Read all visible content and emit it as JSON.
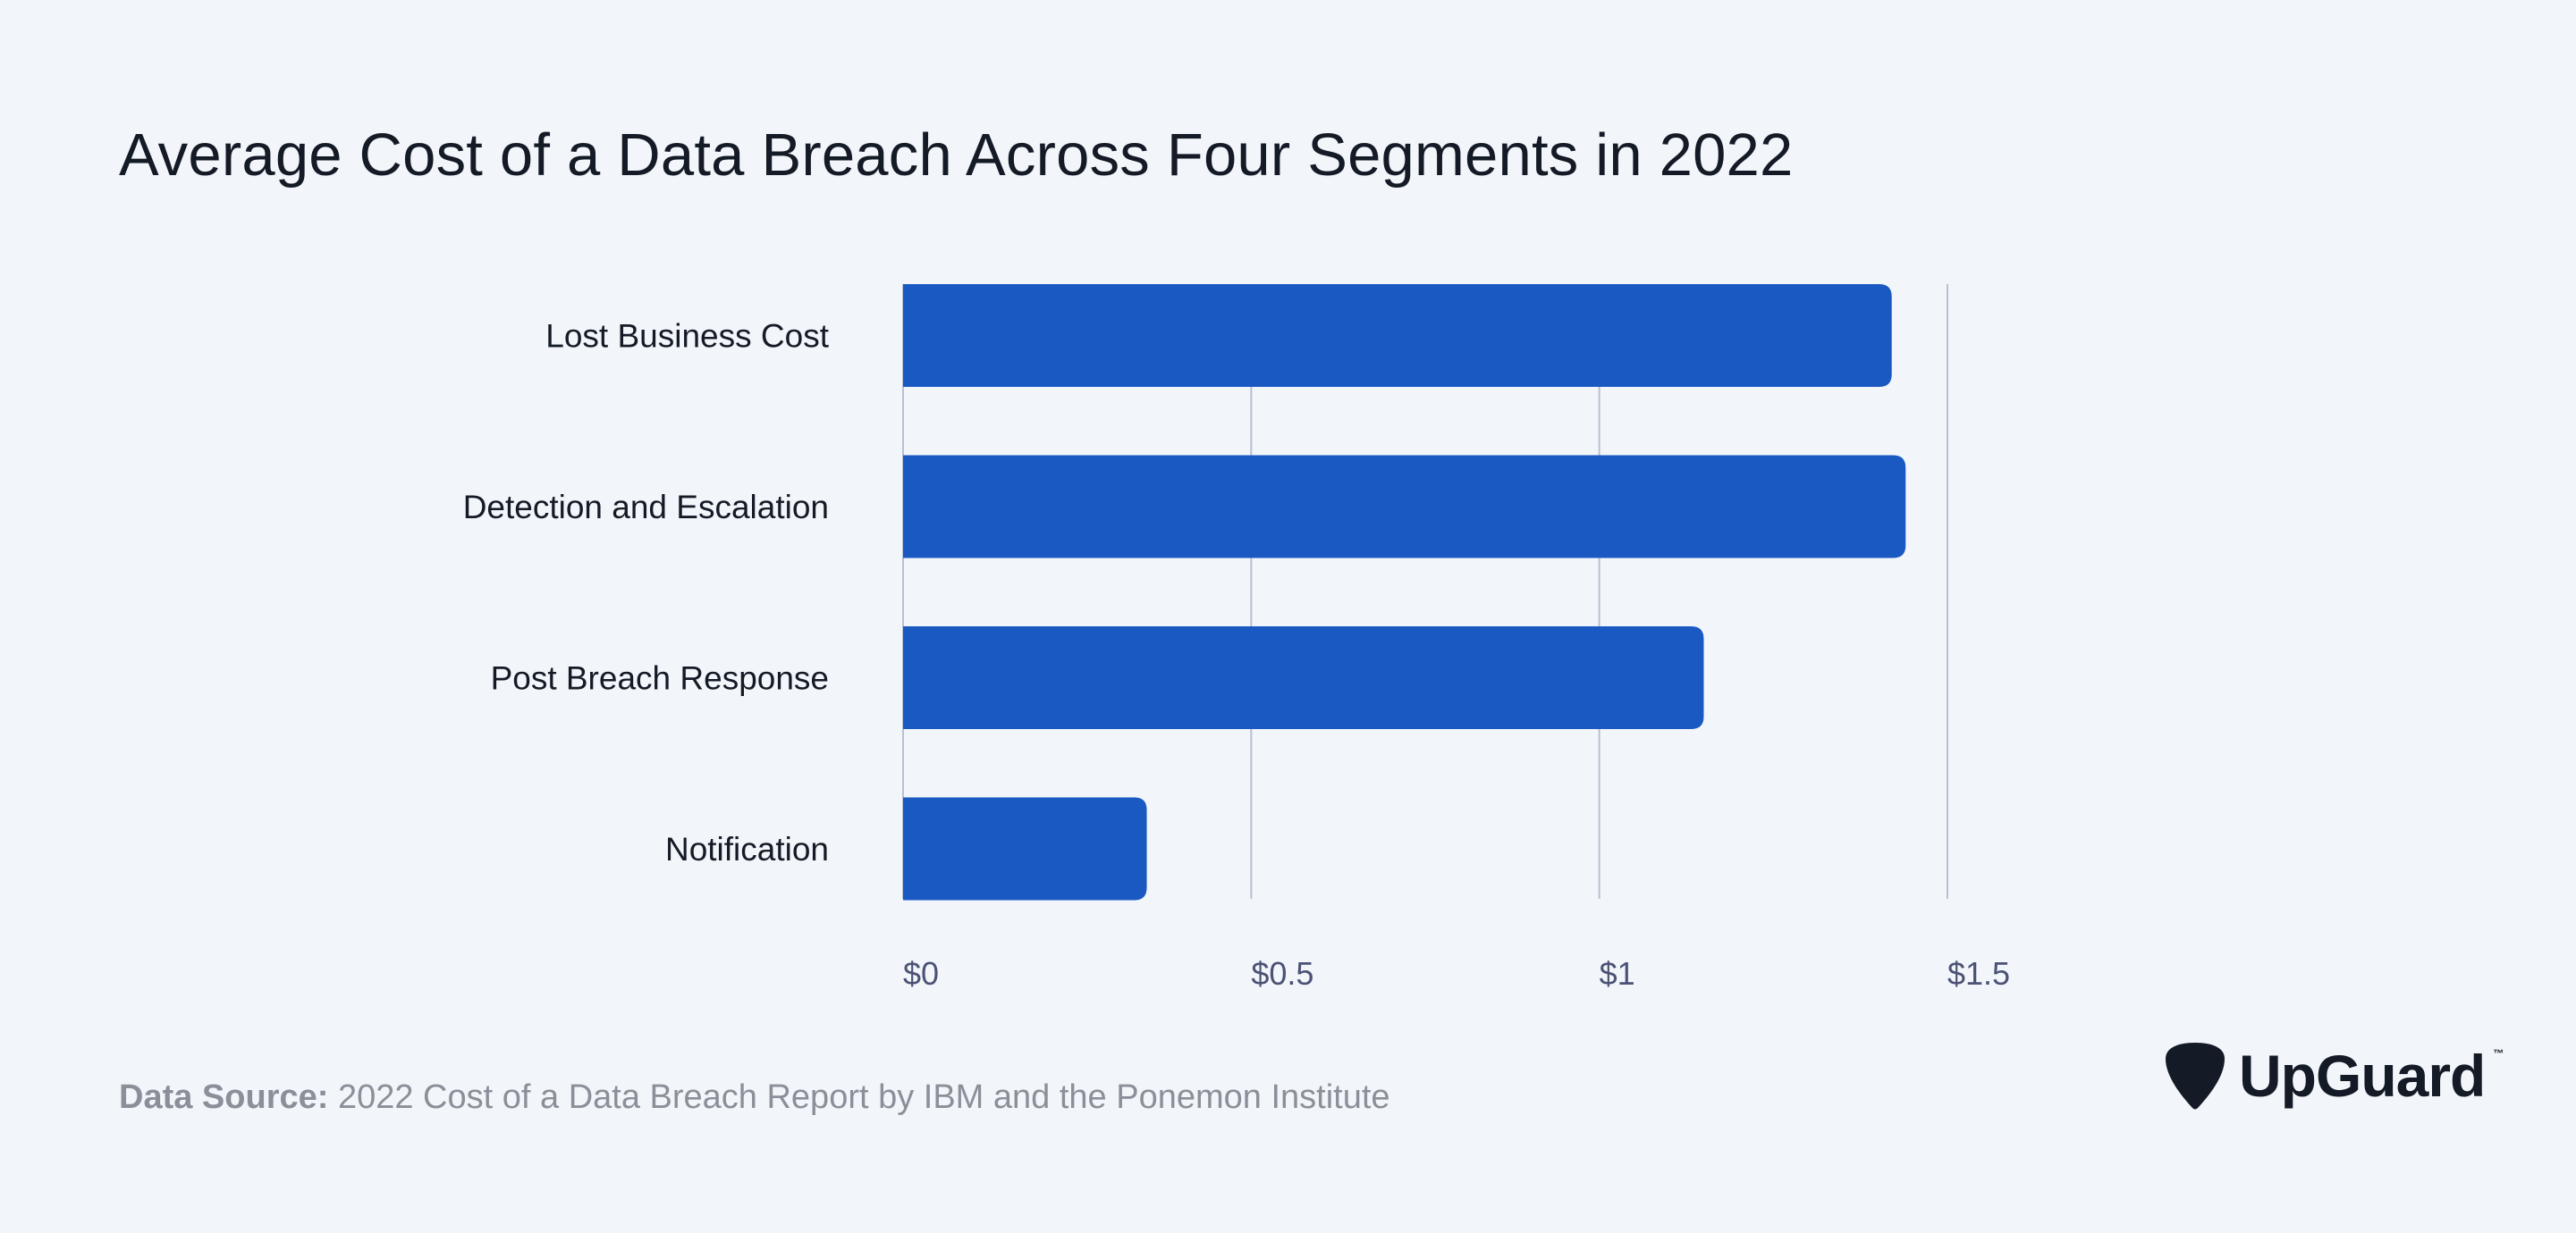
{
  "chart_data": {
    "type": "bar",
    "orientation": "horizontal",
    "title": "Average Cost of a Data Breach Across Four Segments in 2022",
    "categories": [
      "Lost Business Cost",
      "Detection and Escalation",
      "Post Breach Response",
      "Notification"
    ],
    "values": [
      1.42,
      1.44,
      1.15,
      0.35
    ],
    "xlim": [
      0,
      1.5
    ],
    "xticks": [
      0,
      0.5,
      1,
      1.5
    ],
    "xtick_labels": [
      "$0",
      "$0.5",
      "$1",
      "$1.5"
    ],
    "xlabel": "",
    "ylabel": "",
    "grid": true,
    "legend": "none"
  },
  "colors": {
    "bar": "#1a58c2",
    "grid": "#b8bfd3",
    "background": "#f2f6fa"
  },
  "footer": {
    "source_label": "Data Source:",
    "source_text": "2022 Cost of a Data Breach Report by IBM and the Ponemon Institute"
  },
  "brand": {
    "name": "UpGuard",
    "trademark": "™",
    "icon": "guitar-pick-icon"
  }
}
